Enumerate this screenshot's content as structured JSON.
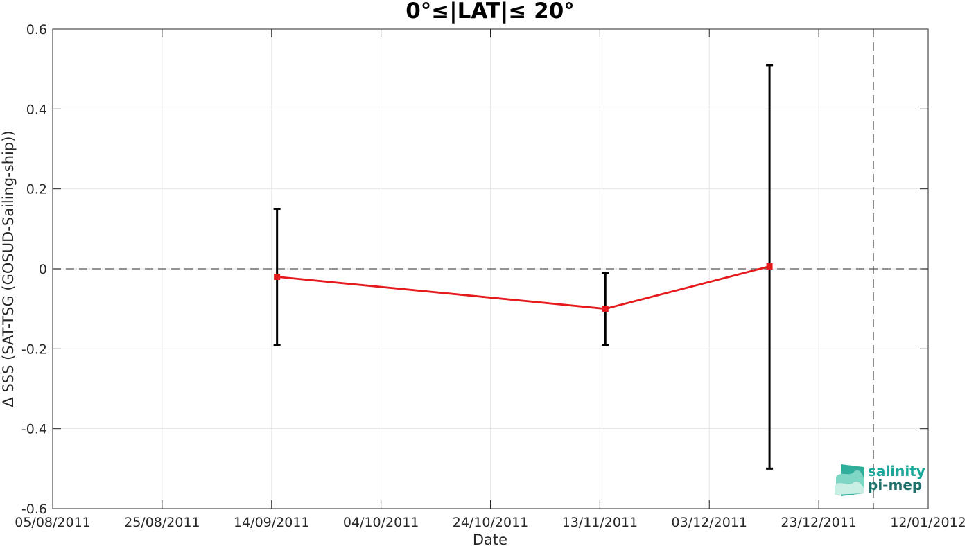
{
  "chart_data": {
    "type": "line",
    "title": "0°≤|LAT|≤ 20°",
    "xlabel": "Date",
    "ylabel": "Δ SSS (SAT-TSG (GOSUD-Sailing-ship))",
    "x_tick_labels": [
      "05/08/2011",
      "25/08/2011",
      "14/09/2011",
      "04/10/2011",
      "24/10/2011",
      "13/11/2011",
      "03/12/2011",
      "23/12/2011",
      "12/01/2012"
    ],
    "xlim": [
      "05/08/2011",
      "12/01/2012"
    ],
    "ylim": [
      -0.6,
      0.6
    ],
    "y_tick_labels": [
      "-0.6",
      "-0.4",
      "-0.2",
      "0",
      "0.2",
      "0.4",
      "0.6"
    ],
    "y_ticks": [
      -0.6,
      -0.4,
      -0.2,
      0,
      0.2,
      0.4,
      0.6
    ],
    "grid": true,
    "reference_lines": {
      "horizontal_y": 0,
      "vertical_date": "02/01/2012",
      "style": "dashed"
    },
    "series": [
      {
        "color": "#e41a1c",
        "marker": "square",
        "points": [
          {
            "x": "15/09/2011",
            "y": -0.02,
            "err_low": -0.19,
            "err_high": 0.15
          },
          {
            "x": "14/11/2011",
            "y": -0.1,
            "err_low": -0.19,
            "err_high": -0.01
          },
          {
            "x": "14/12/2011",
            "y": 0.006,
            "err_low": -0.5,
            "err_high": 0.51
          }
        ]
      }
    ],
    "errorbar_color": "#000000",
    "grid_color": "#e6e6e6"
  },
  "logo": {
    "line1": "salinity",
    "line2": "pi-mep",
    "color1": "#1aa89a",
    "color2": "#1f6f6a"
  }
}
